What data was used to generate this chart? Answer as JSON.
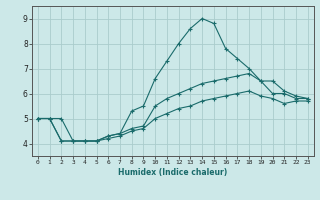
{
  "xlabel": "Humidex (Indice chaleur)",
  "ylabel": "",
  "background_color": "#cce8e8",
  "grid_color": "#aacccc",
  "line_color": "#1a6b6b",
  "xlim": [
    -0.5,
    23.5
  ],
  "ylim": [
    3.5,
    9.5
  ],
  "xticks": [
    0,
    1,
    2,
    3,
    4,
    5,
    6,
    7,
    8,
    9,
    10,
    11,
    12,
    13,
    14,
    15,
    16,
    17,
    18,
    19,
    20,
    21,
    22,
    23
  ],
  "yticks": [
    4,
    5,
    6,
    7,
    8,
    9
  ],
  "line1_x": [
    0,
    1,
    2,
    3,
    4,
    5,
    6,
    7,
    8,
    9,
    10,
    11,
    12,
    13,
    14,
    15,
    16,
    17,
    18,
    19,
    20,
    21,
    22,
    23
  ],
  "line1_y": [
    5.0,
    5.0,
    5.0,
    4.1,
    4.1,
    4.1,
    4.3,
    4.4,
    5.3,
    5.5,
    6.6,
    7.3,
    8.0,
    8.6,
    9.0,
    8.8,
    7.8,
    7.4,
    7.0,
    6.5,
    6.0,
    6.0,
    5.8,
    5.8
  ],
  "line2_x": [
    0,
    1,
    2,
    3,
    4,
    5,
    6,
    7,
    8,
    9,
    10,
    11,
    12,
    13,
    14,
    15,
    16,
    17,
    18,
    19,
    20,
    21,
    22,
    23
  ],
  "line2_y": [
    5.0,
    5.0,
    4.1,
    4.1,
    4.1,
    4.1,
    4.3,
    4.4,
    4.6,
    4.7,
    5.5,
    5.8,
    6.0,
    6.2,
    6.4,
    6.5,
    6.6,
    6.7,
    6.8,
    6.5,
    6.5,
    6.1,
    5.9,
    5.8
  ],
  "line3_x": [
    0,
    1,
    2,
    3,
    4,
    5,
    6,
    7,
    8,
    9,
    10,
    11,
    12,
    13,
    14,
    15,
    16,
    17,
    18,
    19,
    20,
    21,
    22,
    23
  ],
  "line3_y": [
    5.0,
    5.0,
    4.1,
    4.1,
    4.1,
    4.1,
    4.2,
    4.3,
    4.5,
    4.6,
    5.0,
    5.2,
    5.4,
    5.5,
    5.7,
    5.8,
    5.9,
    6.0,
    6.1,
    5.9,
    5.8,
    5.6,
    5.7,
    5.7
  ]
}
